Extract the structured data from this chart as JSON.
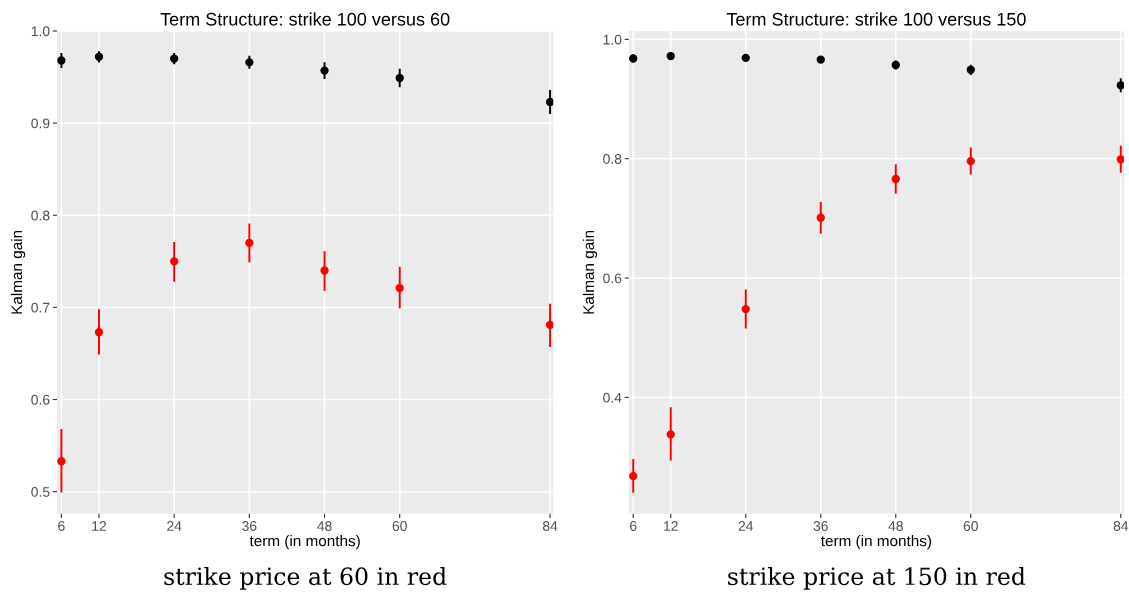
{
  "chart_data": [
    {
      "type": "scatter",
      "title": "Term Structure: strike 100 versus 60",
      "xlabel": "term (in months)",
      "ylabel": "Kalman gain",
      "annotations": [
        "strike price at 60 in red"
      ],
      "x": [
        6,
        12,
        24,
        36,
        48,
        60,
        84
      ],
      "xlim": [
        5.3,
        84.5
      ],
      "xticks": [
        6,
        12,
        24,
        36,
        48,
        60,
        84
      ],
      "ylim": [
        0.476,
        1.0
      ],
      "yticks": [
        {
          "value": 0.5,
          "label": "0.5"
        },
        {
          "value": 0.6,
          "label": "0.6"
        },
        {
          "value": 0.7,
          "label": "0.7"
        },
        {
          "value": 0.8,
          "label": "0.8"
        },
        {
          "value": 0.9,
          "label": "0.9"
        },
        {
          "value": 1.0,
          "label": "1.0"
        }
      ],
      "grid": true,
      "marker": "circle",
      "series": [
        {
          "color": "#000000",
          "values": [
            0.968,
            0.972,
            0.97,
            0.966,
            0.957,
            0.949,
            0.923
          ],
          "errors": [
            [
              0.961,
              0.975
            ],
            [
              0.967,
              0.977
            ],
            [
              0.965,
              0.975
            ],
            [
              0.96,
              0.972
            ],
            [
              0.949,
              0.965
            ],
            [
              0.94,
              0.958
            ],
            [
              0.911,
              0.935
            ]
          ]
        },
        {
          "color": "#ff0000",
          "values": [
            0.533,
            0.673,
            0.75,
            0.77,
            0.74,
            0.721,
            0.681
          ],
          "errors": [
            [
              0.5,
              0.567
            ],
            [
              0.65,
              0.697
            ],
            [
              0.729,
              0.77
            ],
            [
              0.75,
              0.79
            ],
            [
              0.719,
              0.76
            ],
            [
              0.7,
              0.743
            ],
            [
              0.658,
              0.703
            ]
          ]
        }
      ]
    },
    {
      "type": "scatter",
      "title": "Term Structure: strike 100 versus 150",
      "xlabel": "term (in months)",
      "ylabel": "Kalman gain",
      "annotations": [
        "strike price at 150 in red"
      ],
      "x": [
        6,
        12,
        24,
        36,
        48,
        60,
        84
      ],
      "xlim": [
        5.3,
        84.5
      ],
      "xticks": [
        6,
        12,
        24,
        36,
        48,
        60,
        84
      ],
      "ylim": [
        0.205,
        1.014
      ],
      "yticks": [
        {
          "value": 0.4,
          "label": "0.4"
        },
        {
          "value": 0.6,
          "label": "0.6"
        },
        {
          "value": 0.8,
          "label": "0.8"
        },
        {
          "value": 1.0,
          "label": "1.0"
        }
      ],
      "grid": true,
      "marker": "circle",
      "series": [
        {
          "color": "#000000",
          "values": [
            0.968,
            0.972,
            0.969,
            0.966,
            0.957,
            0.949,
            0.923
          ],
          "errors": [
            [
              0.963,
              0.973
            ],
            [
              0.969,
              0.975
            ],
            [
              0.966,
              0.972
            ],
            [
              0.962,
              0.97
            ],
            [
              0.951,
              0.963
            ],
            [
              0.942,
              0.956
            ],
            [
              0.913,
              0.933
            ]
          ]
        },
        {
          "color": "#ff0000",
          "values": [
            0.268,
            0.338,
            0.548,
            0.701,
            0.766,
            0.796,
            0.799
          ],
          "errors": [
            [
              0.242,
              0.295
            ],
            [
              0.296,
              0.382
            ],
            [
              0.517,
              0.579
            ],
            [
              0.676,
              0.726
            ],
            [
              0.743,
              0.789
            ],
            [
              0.775,
              0.817
            ],
            [
              0.778,
              0.82
            ]
          ]
        }
      ]
    }
  ]
}
